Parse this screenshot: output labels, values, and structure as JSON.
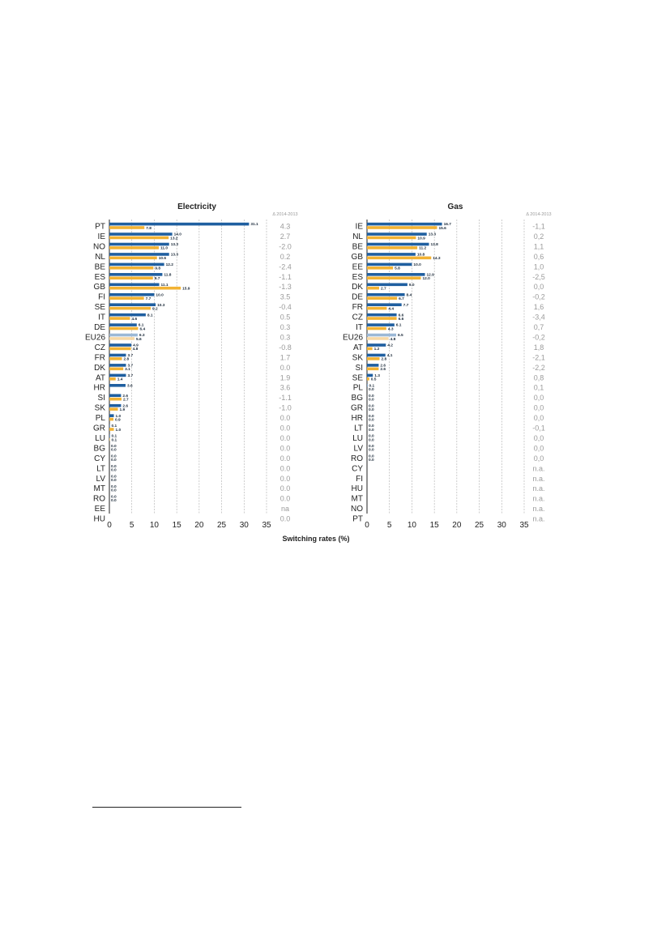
{
  "colors": {
    "series_2014": "#1f5fa0",
    "series_2013": "#f2b233",
    "eu_2014": "#9bb8d6",
    "eu_2013": "#f7d9a6",
    "axis": "#222222",
    "grid": "#aaaaaa",
    "delta_text": "#9a9a9a"
  },
  "xlabel": "Switching rates (%)",
  "chart_data": [
    {
      "type": "bar",
      "title": "Electricity",
      "delta_header": "Δ 2014-2013",
      "xlim": [
        0,
        35
      ],
      "xticks": [
        "0",
        "5",
        "10",
        "15",
        "20",
        "25",
        "30",
        "35"
      ],
      "grid": true,
      "categories": [
        "PT",
        "IE",
        "NO",
        "NL",
        "BE",
        "ES",
        "GB",
        "FI",
        "SE",
        "IT",
        "DE",
        "EU26",
        "CZ",
        "FR",
        "DK",
        "AT",
        "HR",
        "SI",
        "SK",
        "PL",
        "GR",
        "LU",
        "BG",
        "CY",
        "LT",
        "LV",
        "MT",
        "RO",
        "EE",
        "HU"
      ],
      "highlight": [
        "EU26"
      ],
      "series": [
        {
          "values": [
            31.1,
            14.0,
            13.3,
            13.3,
            12.2,
            11.8,
            11.1,
            10.0,
            10.3,
            8.1,
            6.1,
            6.3,
            4.9,
            3.7,
            3.7,
            3.7,
            3.6,
            2.6,
            2.6,
            1.0,
            0.1,
            0.1,
            0.0,
            0.0,
            0.0,
            0.0,
            0.0,
            0.0,
            null,
            null
          ],
          "labels": [
            "31.1",
            "14.0",
            "13.3",
            "13.3",
            "12.2",
            "11.8",
            "11.1",
            "10.0",
            "10.3",
            "8.1",
            "6.1",
            "6.3",
            "4.9",
            "3.7",
            "3.7",
            "3.7",
            "3.6",
            "2.6",
            "2.6",
            "1.0",
            "0.1",
            "0.1",
            "0.0",
            "0.0",
            "0.0",
            "0.0",
            "0.0",
            "0.0",
            "",
            ""
          ]
        },
        {
          "values": [
            7.8,
            13.2,
            11.0,
            10.6,
            9.8,
            9.7,
            15.9,
            7.7,
            9.2,
            4.6,
            6.4,
            5.6,
            4.8,
            2.8,
            3.1,
            1.4,
            null,
            2.7,
            1.9,
            0.9,
            1.0,
            0.1,
            0.0,
            0.0,
            0.0,
            0.0,
            0.0,
            0.0,
            null,
            null
          ],
          "labels": [
            "7.8",
            "13.2",
            "11.0",
            "10.6",
            "9.8",
            "9.7",
            "15.9",
            "7.7",
            "9.2",
            "4.6",
            "6.4",
            "5.6",
            "4.8",
            "2.8",
            "3.1",
            "1.4",
            "",
            "2.7",
            "1.9",
            "0.9",
            "1.0",
            "0.1",
            "0.0",
            "0.0",
            "0.0",
            "0.0",
            "0.0",
            "0.0",
            "",
            ""
          ]
        }
      ],
      "delta": [
        "4.3",
        "2.7",
        "-2.0",
        "0.2",
        "-2.4",
        "-1.1",
        "-1.3",
        "3.5",
        "-0.4",
        "0.5",
        "0.3",
        "0.3",
        "-0.8",
        "1.7",
        "0.0",
        "1.9",
        "3.6",
        "-1.1",
        "-1.0",
        "0.0",
        "0.0",
        "0.0",
        "0.0",
        "0.0",
        "0.0",
        "0.0",
        "0.0",
        "0.0",
        "na",
        "0.0"
      ]
    },
    {
      "type": "bar",
      "title": "Gas",
      "delta_header": "Δ 2014-2013",
      "xlim": [
        0,
        35
      ],
      "xticks": [
        "0",
        "5",
        "10",
        "15",
        "20",
        "25",
        "30",
        "35"
      ],
      "grid": true,
      "categories": [
        "IE",
        "NL",
        "BE",
        "GB",
        "EE",
        "ES",
        "DK",
        "DE",
        "FR",
        "CZ",
        "IT",
        "EU26",
        "AT",
        "SK",
        "SI",
        "SE",
        "PL",
        "BG",
        "GR",
        "HR",
        "LT",
        "LU",
        "LV",
        "RO",
        "CY",
        "FI",
        "HU",
        "MT",
        "NO",
        "PT"
      ],
      "highlight": [
        "EU26"
      ],
      "series": [
        {
          "values": [
            16.7,
            13.3,
            13.8,
            10.8,
            10.0,
            12.9,
            9.0,
            8.4,
            7.7,
            6.6,
            6.1,
            6.5,
            4.2,
            4.1,
            2.6,
            1.3,
            0.1,
            0.0,
            0.0,
            0.0,
            0.0,
            0.0,
            0.0,
            0.0,
            null,
            null,
            null,
            null,
            null,
            null
          ],
          "labels": [
            "16.7",
            "13.3",
            "13.8",
            "10.8",
            "10.0",
            "12.9",
            "9.0",
            "8.4",
            "7.7",
            "6.6",
            "6.1",
            "6.5",
            "4.2",
            "4.1",
            "2.6",
            "1.3",
            "0.1",
            "0.0",
            "0.0",
            "0.0",
            "0.0",
            "0.0",
            "0.0",
            "0.0",
            "",
            "",
            "",
            "",
            "",
            ""
          ]
        },
        {
          "values": [
            15.6,
            10.9,
            11.2,
            14.3,
            5.8,
            12.0,
            2.7,
            6.7,
            4.4,
            6.6,
            4.3,
            4.8,
            1.2,
            2.8,
            2.6,
            0.5,
            0.0,
            0.0,
            0.0,
            0.0,
            0.0,
            0.0,
            0.0,
            0.0,
            null,
            null,
            null,
            null,
            null,
            null
          ],
          "labels": [
            "15.6",
            "10.9",
            "11.2",
            "14.3",
            "5.8",
            "12.0",
            "2.7",
            "6.7",
            "4.4",
            "6.6",
            "4.3",
            "4.8",
            "1.2",
            "2.8",
            "2.6",
            "0.5",
            "0.0",
            "0.0",
            "0.0",
            "0.0",
            "0.0",
            "0.0",
            "0.0",
            "0.0",
            "",
            "",
            "",
            "",
            "",
            ""
          ]
        }
      ],
      "delta": [
        "-1,1",
        "0,2",
        "1,1",
        "0,6",
        "1,0",
        "-2,5",
        "0,0",
        "-0,2",
        "1,6",
        "-3,4",
        "0,7",
        "-0,2",
        "1,8",
        "-2,1",
        "-2,2",
        "0,8",
        "0,1",
        "0,0",
        "0,0",
        "0,0",
        "-0,1",
        "0,0",
        "0,0",
        "0,0",
        "n.a.",
        "n.a.",
        "n.a.",
        "n.a.",
        "n.a.",
        "n.a."
      ]
    }
  ]
}
